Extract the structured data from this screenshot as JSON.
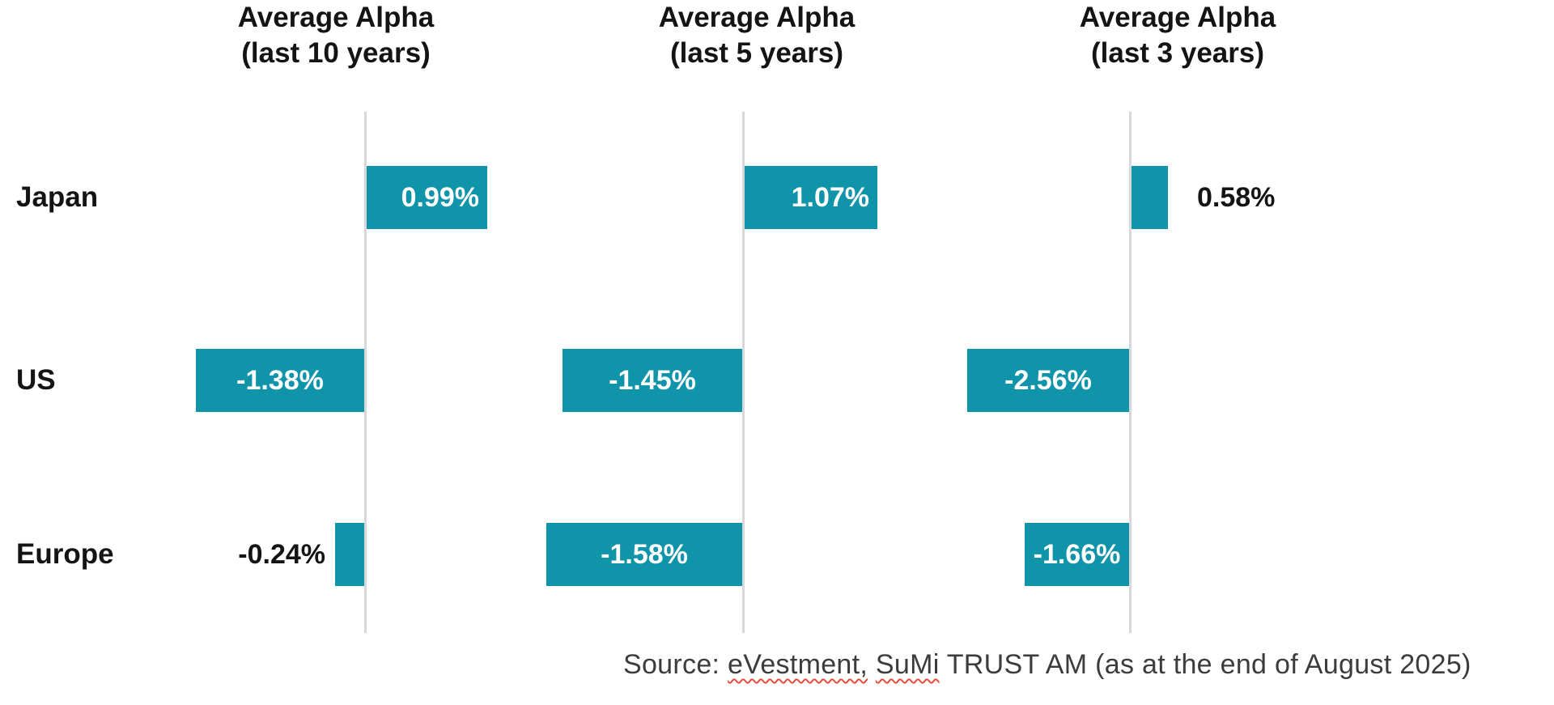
{
  "figure": {
    "unit": "%",
    "regions": [
      "Japan",
      "US",
      "Europe"
    ]
  },
  "chart_data": [
    {
      "type": "bar",
      "orientation": "horizontal",
      "title_line1": "Average Alpha",
      "title_line2": "(last 10 years)",
      "categories": [
        "Japan",
        "US",
        "Europe"
      ],
      "values": [
        0.99,
        -1.38,
        -0.24
      ],
      "labels": [
        "0.99%",
        "-1.38%",
        "-0.24%"
      ],
      "label_placement": [
        "inside",
        "inside",
        "outside-left"
      ],
      "grid": "off",
      "legend": "none"
    },
    {
      "type": "bar",
      "orientation": "horizontal",
      "title_line1": "Average Alpha",
      "title_line2": "(last 5 years)",
      "categories": [
        "Japan",
        "US",
        "Europe"
      ],
      "values": [
        1.07,
        -1.45,
        -1.58
      ],
      "labels": [
        "1.07%",
        "-1.45%",
        "-1.58%"
      ],
      "label_placement": [
        "inside",
        "inside",
        "inside"
      ],
      "grid": "off",
      "legend": "none"
    },
    {
      "type": "bar",
      "orientation": "horizontal",
      "title_line1": "Average Alpha",
      "title_line2": "(last 3 years)",
      "categories": [
        "Japan",
        "US",
        "Europe"
      ],
      "values": [
        0.58,
        -2.56,
        -1.66
      ],
      "labels": [
        "0.58%",
        "-2.56%",
        "-1.66%"
      ],
      "label_placement": [
        "outside-right",
        "inside",
        "inside"
      ],
      "grid": "off",
      "legend": "none"
    }
  ],
  "source": {
    "prefix": "Source: ",
    "evestment": "eVestment,",
    "space": " ",
    "sumi": "SuMi",
    "rest": " TRUST AM (as at the end of August 2025)"
  },
  "colors": {
    "bar": "#1094A9",
    "axis_line": "#D8D8D8",
    "title_text": "#141414",
    "label_on_bar": "#FFFFFF",
    "label_outside": "#141414",
    "source_text": "#3C3C3C",
    "spellcheck_squiggle": "#E74C3C"
  }
}
